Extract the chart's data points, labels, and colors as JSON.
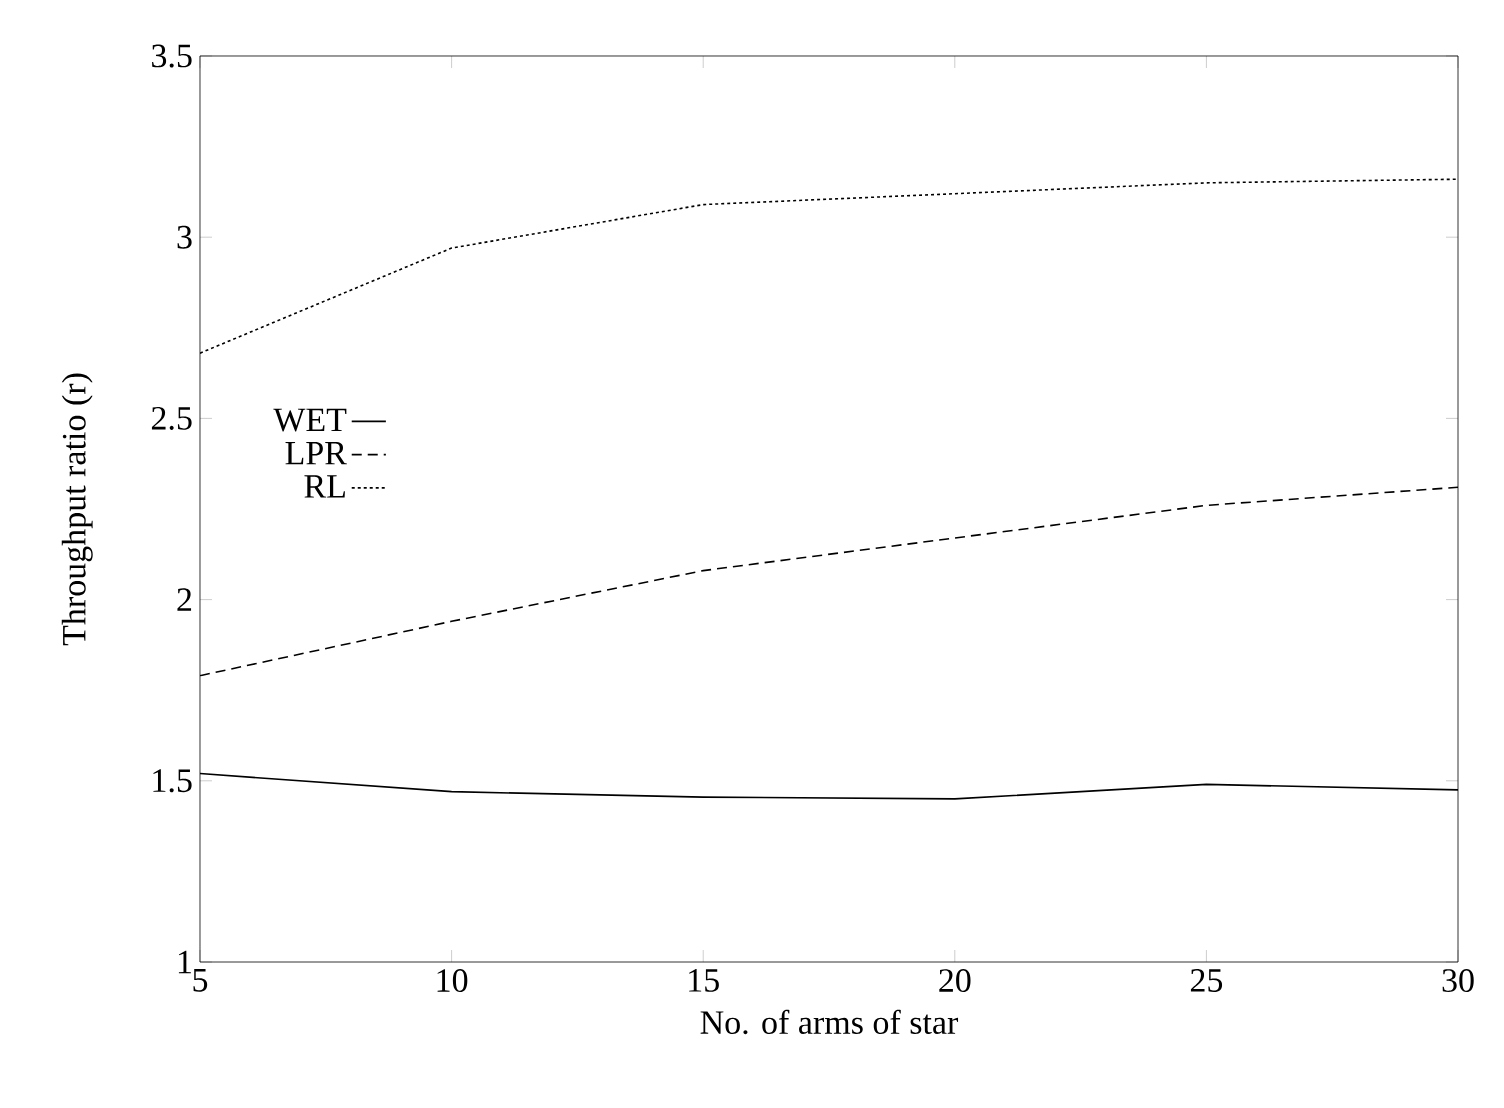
{
  "chart_data": {
    "type": "line",
    "xlabel": "No. of arms of star",
    "ylabel": "Throughput ratio (r)",
    "x": [
      5,
      10,
      15,
      20,
      25,
      30
    ],
    "xlim": [
      5,
      30
    ],
    "xticks": [
      5,
      10,
      15,
      20,
      25,
      30
    ],
    "ylim": [
      1,
      3.5
    ],
    "yticks": [
      1,
      1.5,
      2,
      2.5,
      3,
      3.5
    ],
    "legend": "center left",
    "series": [
      {
        "name": "WET",
        "color": "#000000",
        "line_style": "solid",
        "values": [
          1.52,
          1.47,
          1.455,
          1.45,
          1.49,
          1.475
        ]
      },
      {
        "name": "LPR",
        "color": "#000000",
        "line_style": "dashed",
        "values": [
          1.79,
          1.94,
          2.08,
          2.17,
          2.26,
          2.31
        ]
      },
      {
        "name": "RL",
        "color": "#000000",
        "line_style": "dotted",
        "values": [
          2.68,
          2.97,
          3.09,
          3.12,
          3.15,
          3.16
        ]
      }
    ]
  }
}
